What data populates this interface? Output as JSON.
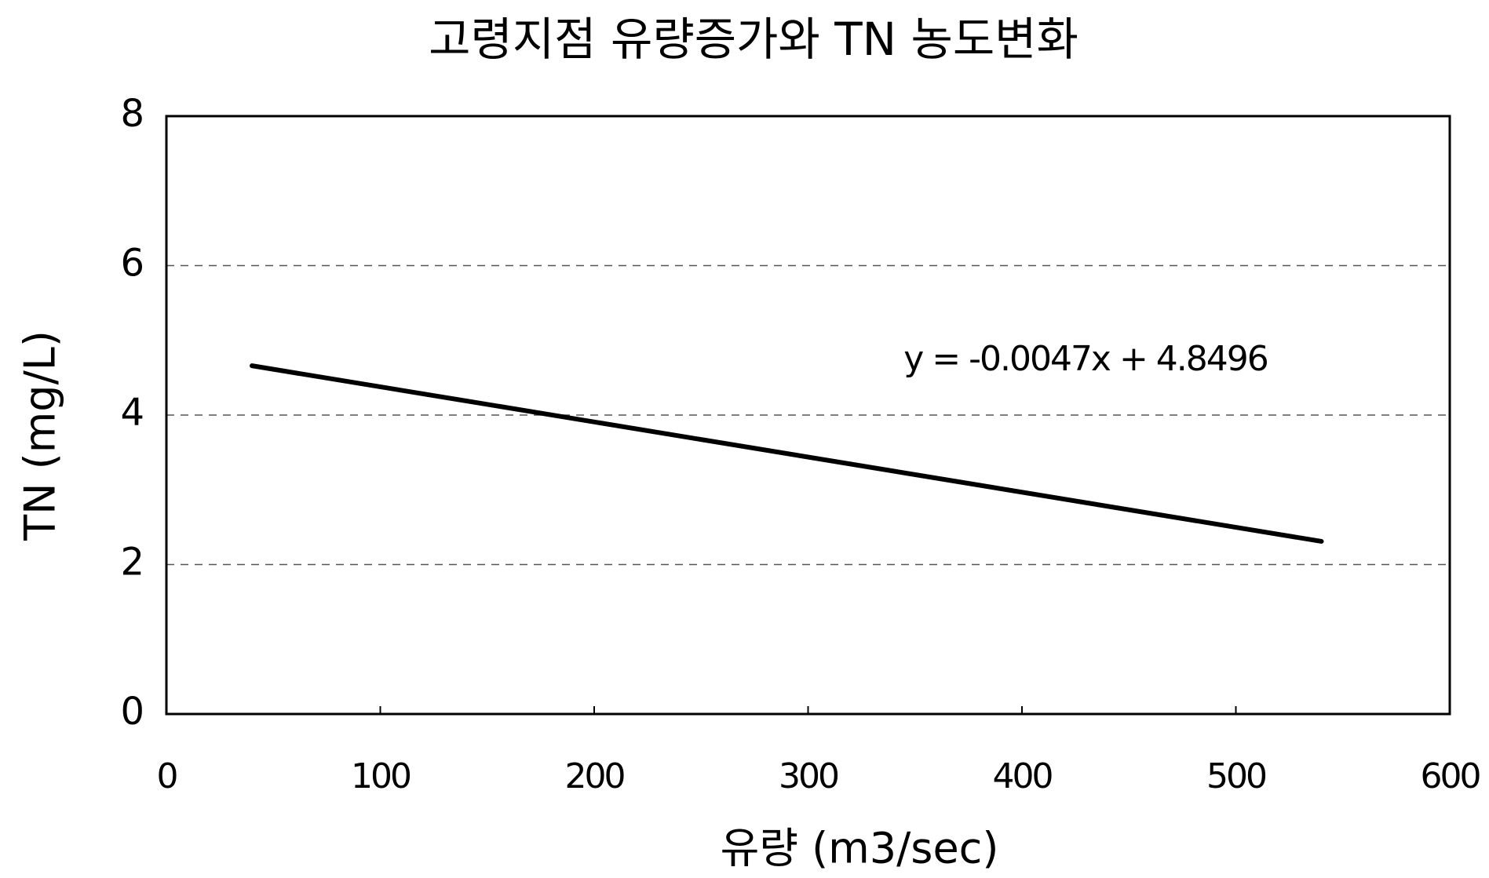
{
  "chart_data": {
    "type": "line",
    "title": "고령지점 유량증가와 TN 농도변화",
    "x_label": "유량 (m3/sec)",
    "y_label": "TN (mg/L)",
    "annotation": "y = -0.0047x + 4.8496",
    "x": [
      40,
      540
    ],
    "series": [
      {
        "name": "TN",
        "color": "#000000",
        "values": [
          4.66,
          2.31
        ]
      }
    ],
    "xlim": [
      0,
      600
    ],
    "xticks": [
      0,
      100,
      200,
      300,
      400,
      500,
      600
    ],
    "ylim": [
      0,
      8
    ],
    "yticks": [
      0,
      2,
      4,
      6,
      8
    ],
    "grid": true
  }
}
